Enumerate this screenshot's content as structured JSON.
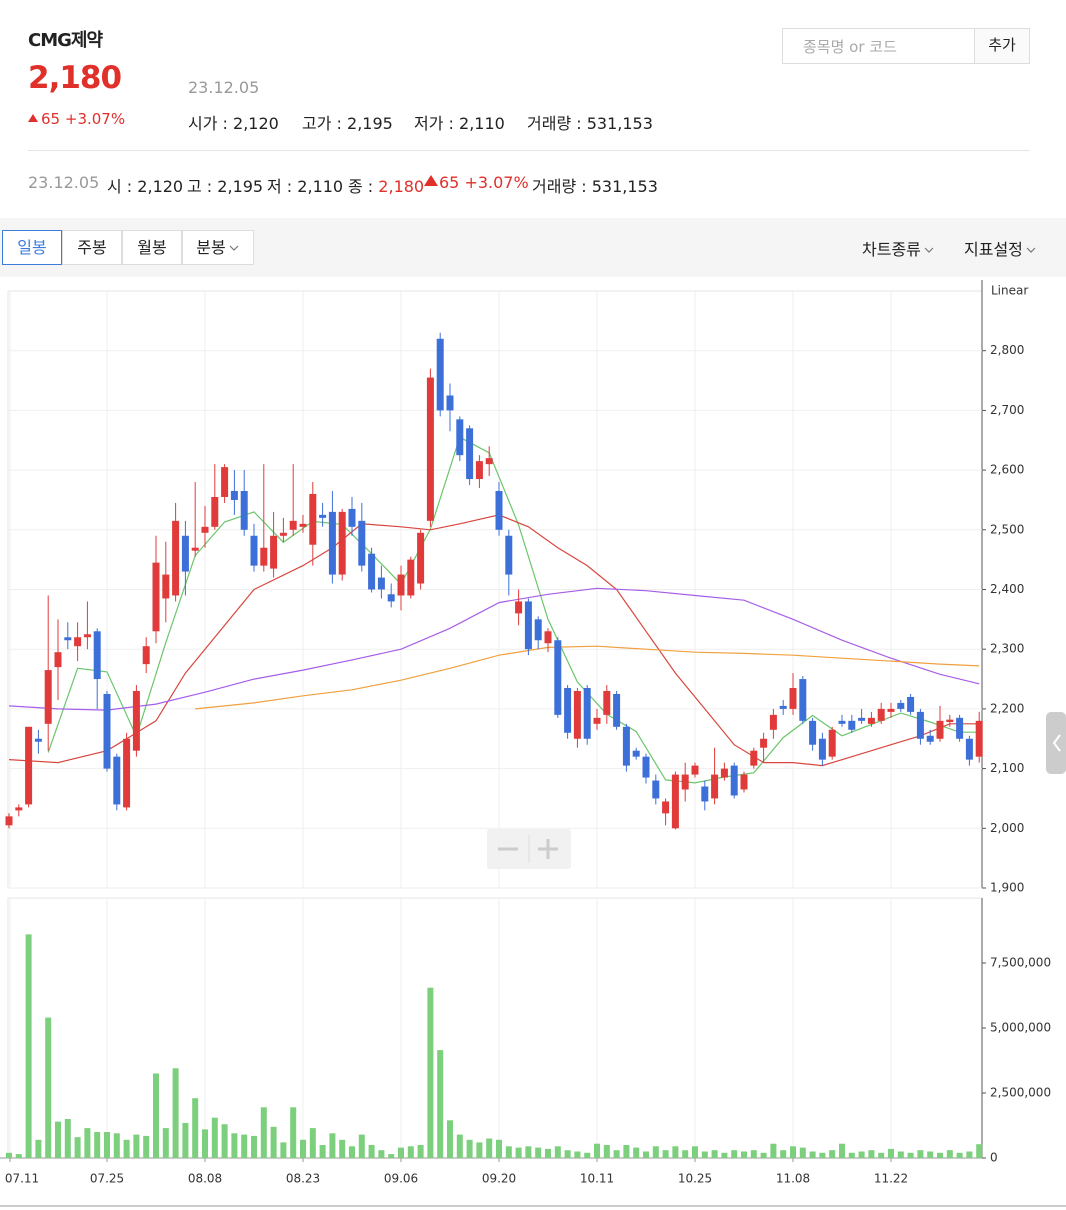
{
  "header": {
    "name": "CMG제약",
    "price": "2,180",
    "date": "23.12.05",
    "change": "65",
    "change_pct": "+3.07%",
    "stats": [
      {
        "label": "시가 :",
        "value": "2,120"
      },
      {
        "label": "고가 :",
        "value": "2,195"
      },
      {
        "label": "저가 :",
        "value": "2,110"
      },
      {
        "label": "거래량 :",
        "value": "531,153"
      }
    ]
  },
  "search": {
    "placeholder": "종목명 or 코드",
    "button": "추가"
  },
  "summary": {
    "date": "23.12.05",
    "items": [
      {
        "label": "시 :",
        "value": "2,120"
      },
      {
        "label": "고 :",
        "value": "2,195"
      },
      {
        "label": "저 :",
        "value": "2,110"
      }
    ],
    "close": {
      "label": "종 :",
      "value": "2,180"
    },
    "change": "65",
    "change_pct": "+3.07%",
    "volume": {
      "label": "거래량 :",
      "value": "531,153"
    }
  },
  "tabs": [
    "일봉",
    "주봉",
    "월봉",
    "분봉"
  ],
  "menus": [
    "차트종류",
    "지표설정"
  ],
  "chart_data": [
    {
      "type": "candlestick",
      "scale_label": "Linear",
      "grid": true,
      "up_color": "#e03a3a",
      "down_color": "#3d6fd8",
      "categories": [
        "07.11",
        null,
        null,
        null,
        null,
        null,
        null,
        null,
        null,
        null,
        "07.25",
        null,
        null,
        null,
        null,
        null,
        null,
        null,
        null,
        null,
        "08.08",
        null,
        null,
        null,
        null,
        null,
        null,
        null,
        null,
        null,
        "08.23",
        null,
        null,
        null,
        null,
        null,
        null,
        null,
        null,
        null,
        "09.06",
        null,
        null,
        null,
        null,
        null,
        null,
        null,
        null,
        null,
        "09.20",
        null,
        null,
        null,
        null,
        null,
        null,
        null,
        null,
        null,
        "10.11",
        null,
        null,
        null,
        null,
        null,
        null,
        null,
        null,
        null,
        "10.25",
        null,
        null,
        null,
        null,
        null,
        null,
        null,
        null,
        null,
        "11.08",
        null,
        null,
        null,
        null,
        null,
        null,
        null,
        null,
        null,
        "11.22",
        null,
        null,
        null,
        null,
        null,
        null,
        null,
        null,
        null
      ],
      "open": [
        2005,
        2030,
        2040,
        2150,
        2175,
        2270,
        2320,
        2305,
        2320,
        2330,
        2225,
        2120,
        2035,
        2130,
        2275,
        2330,
        2385,
        2390,
        2490,
        2465,
        2495,
        2505,
        2555,
        2565,
        2565,
        2490,
        2440,
        2435,
        2490,
        2500,
        2505,
        2475,
        2525,
        2530,
        2425,
        2535,
        2515,
        2460,
        2420,
        2392,
        2390,
        2390,
        2410,
        2515,
        2820,
        2725,
        2685,
        2670,
        2585,
        2610,
        2565,
        2490,
        2360,
        2380,
        2350,
        2310,
        2315,
        2235,
        2150,
        2235,
        2175,
        2190,
        2225,
        2170,
        2130,
        2120,
        2080,
        2025,
        2000,
        2065,
        2090,
        2070,
        2050,
        2085,
        2105,
        2065,
        2105,
        2135,
        2165,
        2205,
        2200,
        2250,
        2180,
        2150,
        2120,
        2180,
        2180,
        2185,
        2175,
        2180,
        2195,
        2210,
        2220,
        2195,
        2155,
        2150,
        2178,
        2185,
        2150,
        2120
      ],
      "high": [
        2025,
        2040,
        2170,
        2165,
        2390,
        2350,
        2345,
        2345,
        2380,
        2335,
        2230,
        2125,
        2160,
        2240,
        2320,
        2490,
        2480,
        2545,
        2515,
        2580,
        2540,
        2610,
        2610,
        2600,
        2600,
        2510,
        2610,
        2530,
        2520,
        2610,
        2525,
        2580,
        2545,
        2565,
        2535,
        2555,
        2545,
        2470,
        2440,
        2410,
        2440,
        2455,
        2500,
        2770,
        2830,
        2745,
        2690,
        2675,
        2625,
        2640,
        2580,
        2500,
        2400,
        2385,
        2355,
        2335,
        2320,
        2240,
        2235,
        2240,
        2200,
        2240,
        2230,
        2175,
        2135,
        2125,
        2090,
        2050,
        2095,
        2110,
        2110,
        2080,
        2135,
        2110,
        2110,
        2095,
        2135,
        2160,
        2200,
        2215,
        2260,
        2255,
        2185,
        2160,
        2170,
        2190,
        2190,
        2200,
        2195,
        2210,
        2210,
        2215,
        2225,
        2200,
        2165,
        2205,
        2190,
        2190,
        2155,
        2195
      ],
      "low": [
        2000,
        2020,
        2035,
        2125,
        2130,
        2215,
        2300,
        2280,
        2300,
        2200,
        2095,
        2030,
        2030,
        2120,
        2260,
        2310,
        2345,
        2380,
        2390,
        2455,
        2470,
        2500,
        2545,
        2525,
        2490,
        2430,
        2430,
        2420,
        2480,
        2490,
        2495,
        2440,
        2505,
        2410,
        2415,
        2490,
        2430,
        2395,
        2385,
        2370,
        2365,
        2385,
        2400,
        2505,
        2690,
        2665,
        2615,
        2575,
        2570,
        2590,
        2490,
        2390,
        2340,
        2290,
        2300,
        2295,
        2185,
        2150,
        2135,
        2140,
        2165,
        2175,
        2165,
        2095,
        2115,
        2075,
        2040,
        2005,
        1998,
        2045,
        2085,
        2030,
        2040,
        2080,
        2050,
        2060,
        2100,
        2110,
        2150,
        2190,
        2190,
        2175,
        2130,
        2105,
        2115,
        2170,
        2160,
        2175,
        2170,
        2175,
        2185,
        2195,
        2190,
        2140,
        2140,
        2145,
        2170,
        2145,
        2105,
        2110
      ],
      "close": [
        2020,
        2035,
        2170,
        2145,
        2265,
        2295,
        2315,
        2320,
        2325,
        2250,
        2100,
        2040,
        2150,
        2230,
        2305,
        2445,
        2425,
        2515,
        2430,
        2470,
        2505,
        2555,
        2605,
        2550,
        2500,
        2440,
        2470,
        2490,
        2495,
        2515,
        2510,
        2560,
        2520,
        2425,
        2530,
        2505,
        2440,
        2400,
        2400,
        2380,
        2425,
        2450,
        2495,
        2755,
        2700,
        2700,
        2625,
        2585,
        2615,
        2620,
        2500,
        2425,
        2380,
        2300,
        2315,
        2330,
        2190,
        2160,
        2230,
        2150,
        2185,
        2230,
        2170,
        2105,
        2120,
        2085,
        2050,
        2045,
        2090,
        2090,
        2105,
        2045,
        2090,
        2100,
        2055,
        2090,
        2130,
        2150,
        2190,
        2200,
        2235,
        2180,
        2140,
        2115,
        2165,
        2175,
        2165,
        2180,
        2185,
        2200,
        2200,
        2200,
        2195,
        2150,
        2145,
        2180,
        2182,
        2150,
        2115,
        2180
      ],
      "ylim": [
        1900,
        2900
      ],
      "yticks": [
        {
          "value": 1900,
          "label": "1,900"
        },
        {
          "value": 2000,
          "label": "2,000"
        },
        {
          "value": 2100,
          "label": "2,100"
        },
        {
          "value": 2200,
          "label": "2,200"
        },
        {
          "value": 2300,
          "label": "2,300"
        },
        {
          "value": 2400,
          "label": "2,400"
        },
        {
          "value": 2500,
          "label": "2,500"
        },
        {
          "value": 2600,
          "label": "2,600"
        },
        {
          "value": 2700,
          "label": "2,700"
        },
        {
          "value": 2800,
          "label": "2,800"
        }
      ],
      "ma_lines": [
        {
          "color": "#6cc66c",
          "x": [
            4,
            7,
            10,
            13,
            16,
            19,
            22,
            25,
            28,
            31,
            34,
            37,
            40,
            43,
            46,
            49,
            52,
            55,
            58,
            61,
            64,
            67,
            70,
            73,
            76,
            79,
            82,
            85,
            88,
            91,
            94,
            97,
            99
          ],
          "values": [
            2127,
            2268,
            2262,
            2154,
            2311,
            2457,
            2513,
            2530,
            2479,
            2514,
            2509,
            2460,
            2409,
            2501,
            2655,
            2629,
            2508,
            2350,
            2245,
            2191,
            2162,
            2081,
            2076,
            2086,
            2093,
            2152,
            2189,
            2155,
            2174,
            2193,
            2178,
            2161,
            2161
          ]
        },
        {
          "color": "#d8473f",
          "x": [
            0,
            5,
            10,
            12,
            15,
            18,
            20,
            25,
            30,
            33,
            36,
            40,
            43,
            46,
            50,
            53,
            56,
            59,
            62,
            65,
            68,
            71,
            74,
            77,
            80,
            83,
            86,
            90,
            93,
            96,
            99
          ],
          "values": [
            2115,
            2110,
            2130,
            2150,
            2180,
            2260,
            2300,
            2400,
            2440,
            2470,
            2510,
            2505,
            2500,
            2510,
            2525,
            2505,
            2470,
            2440,
            2400,
            2330,
            2260,
            2200,
            2140,
            2110,
            2110,
            2105,
            2120,
            2140,
            2155,
            2175,
            2175
          ]
        },
        {
          "color": "#a65ee8",
          "x": [
            0,
            5,
            10,
            15,
            20,
            25,
            30,
            35,
            40,
            45,
            50,
            55,
            60,
            65,
            70,
            75,
            80,
            85,
            90,
            95,
            99
          ],
          "values": [
            2205,
            2200,
            2198,
            2208,
            2228,
            2250,
            2265,
            2282,
            2300,
            2335,
            2378,
            2392,
            2402,
            2398,
            2390,
            2382,
            2350,
            2315,
            2285,
            2258,
            2242
          ]
        },
        {
          "color": "#f0a040",
          "x": [
            19,
            25,
            30,
            35,
            40,
            45,
            50,
            55,
            60,
            65,
            70,
            75,
            80,
            85,
            90,
            95,
            99
          ],
          "values": [
            2200,
            2210,
            2222,
            2232,
            2248,
            2268,
            2290,
            2303,
            2305,
            2300,
            2295,
            2293,
            2290,
            2285,
            2280,
            2275,
            2272
          ]
        }
      ]
    },
    {
      "type": "bar",
      "color": "#7ccf7c",
      "ylim": [
        0,
        10000000
      ],
      "yticks": [
        0,
        {
          "value": 2500000,
          "label": "2,500,000"
        },
        {
          "value": 5000000,
          "label": "5,000,000"
        },
        {
          "value": 7500000,
          "label": "7,500,000"
        }
      ],
      "values": [
        200000,
        150000,
        8600000,
        700000,
        5400000,
        1400000,
        1500000,
        800000,
        1150000,
        1000000,
        1000000,
        950000,
        700000,
        900000,
        850000,
        3250000,
        1150000,
        3450000,
        1350000,
        2300000,
        1100000,
        1550000,
        1300000,
        950000,
        900000,
        850000,
        1950000,
        1200000,
        600000,
        1950000,
        700000,
        1150000,
        500000,
        950000,
        700000,
        450000,
        900000,
        500000,
        300000,
        150000,
        400000,
        450000,
        500000,
        6550000,
        4150000,
        1450000,
        900000,
        700000,
        600000,
        750000,
        700000,
        450000,
        400000,
        450000,
        400000,
        350000,
        450000,
        300000,
        250000,
        200000,
        550000,
        500000,
        300000,
        500000,
        400000,
        250000,
        450000,
        300000,
        450000,
        300000,
        450000,
        250000,
        300000,
        200000,
        300000,
        250000,
        300000,
        200000,
        550000,
        300000,
        450000,
        400000,
        250000,
        200000,
        300000,
        550000,
        200000,
        250000,
        300000,
        200000,
        350000,
        250000,
        200000,
        300000,
        250000,
        200000,
        300000,
        200000,
        250000,
        531153
      ]
    }
  ]
}
